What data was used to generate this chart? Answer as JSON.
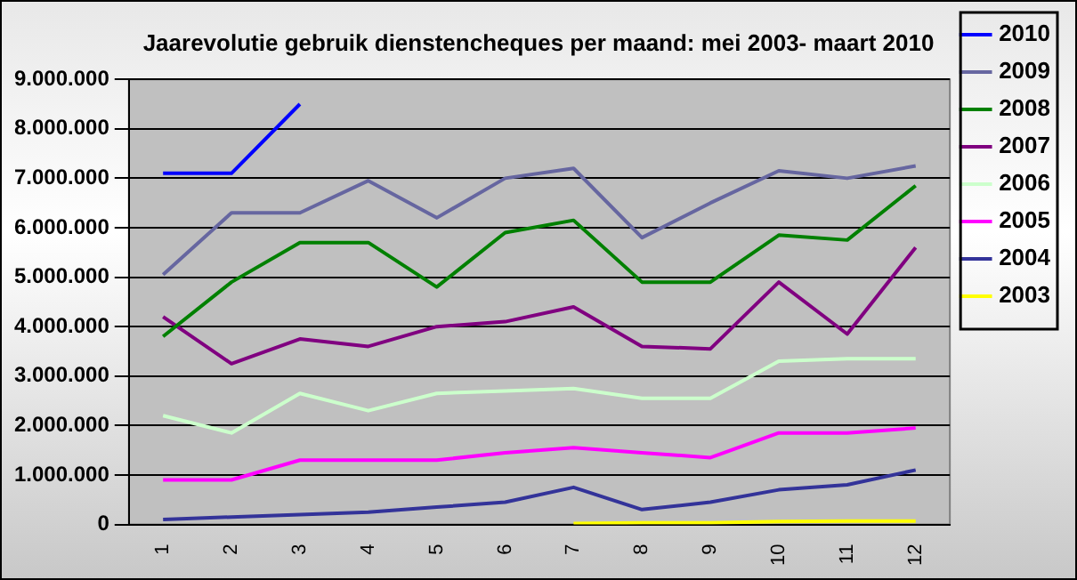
{
  "chart_data": {
    "type": "line",
    "title": "Jaarevolutie gebruik dienstencheques per maand: mei 2003- maart 2010",
    "categories": [
      "1",
      "2",
      "3",
      "4",
      "5",
      "6",
      "7",
      "8",
      "9",
      "10",
      "11",
      "12"
    ],
    "series": [
      {
        "name": "2010",
        "color": "#0000ff",
        "values": [
          7100000,
          7100000,
          8500000,
          null,
          null,
          null,
          null,
          null,
          null,
          null,
          null,
          null
        ]
      },
      {
        "name": "2009",
        "color": "#6666a0",
        "values": [
          5050000,
          6300000,
          6300000,
          6950000,
          6200000,
          7000000,
          7200000,
          5800000,
          6500000,
          7150000,
          7000000,
          7250000
        ]
      },
      {
        "name": "2008",
        "color": "#008000",
        "values": [
          3800000,
          4900000,
          5700000,
          5700000,
          4800000,
          5900000,
          6150000,
          4900000,
          4900000,
          5850000,
          5750000,
          6850000
        ]
      },
      {
        "name": "2007",
        "color": "#800080",
        "values": [
          4200000,
          3250000,
          3750000,
          3600000,
          4000000,
          4100000,
          4400000,
          3600000,
          3550000,
          4900000,
          3850000,
          5600000
        ]
      },
      {
        "name": "2006",
        "color": "#ccffcc",
        "values": [
          2200000,
          1850000,
          2650000,
          2300000,
          2650000,
          2700000,
          2750000,
          2550000,
          2550000,
          3300000,
          3350000,
          3350000
        ]
      },
      {
        "name": "2005",
        "color": "#ff00ff",
        "values": [
          900000,
          900000,
          1300000,
          1300000,
          1300000,
          1450000,
          1550000,
          1450000,
          1350000,
          1850000,
          1850000,
          1950000
        ]
      },
      {
        "name": "2004",
        "color": "#333399",
        "values": [
          100000,
          150000,
          200000,
          250000,
          350000,
          450000,
          750000,
          300000,
          450000,
          700000,
          800000,
          1100000
        ]
      },
      {
        "name": "2003",
        "color": "#ffff00",
        "values": [
          null,
          null,
          null,
          null,
          null,
          null,
          20000,
          30000,
          30000,
          60000,
          70000,
          70000
        ]
      }
    ],
    "ylim": [
      0,
      9000000
    ],
    "yticks": [
      {
        "value": 0,
        "label": "0"
      },
      {
        "value": 1000000,
        "label": "1.000.000"
      },
      {
        "value": 2000000,
        "label": "2.000.000"
      },
      {
        "value": 3000000,
        "label": "3.000.000"
      },
      {
        "value": 4000000,
        "label": "4.000.000"
      },
      {
        "value": 5000000,
        "label": "5.000.000"
      },
      {
        "value": 6000000,
        "label": "6.000.000"
      },
      {
        "value": 7000000,
        "label": "7.000.000"
      },
      {
        "value": 8000000,
        "label": "8.000.000"
      },
      {
        "value": 9000000,
        "label": "9.000.000"
      }
    ],
    "grid": "y",
    "legend": "right",
    "marker": "none",
    "line_style": "solid"
  }
}
